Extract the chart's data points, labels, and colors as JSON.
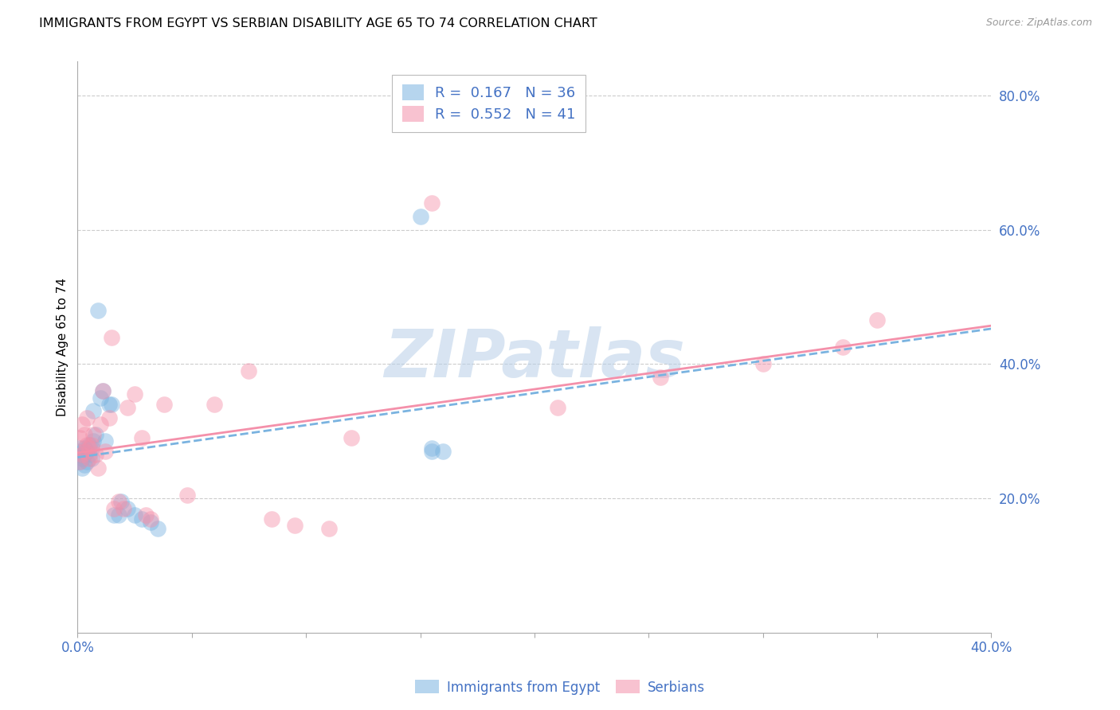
{
  "title": "IMMIGRANTS FROM EGYPT VS SERBIAN DISABILITY AGE 65 TO 74 CORRELATION CHART",
  "source": "Source: ZipAtlas.com",
  "ylabel": "Disability Age 65 to 74",
  "watermark": "ZIPatlas",
  "xlim": [
    0.0,
    0.4
  ],
  "ylim": [
    0.0,
    0.85
  ],
  "yticks_right": [
    0.2,
    0.4,
    0.6,
    0.8
  ],
  "ytick_right_labels": [
    "20.0%",
    "40.0%",
    "60.0%",
    "80.0%"
  ],
  "legend_entries": [
    {
      "label": "R =  0.167   N = 36"
    },
    {
      "label": "R =  0.552   N = 41"
    }
  ],
  "series1_name": "Immigrants from Egypt",
  "series2_name": "Serbians",
  "series1_color": "#7ab3e0",
  "series2_color": "#f490aa",
  "title_fontsize": 11.5,
  "axis_label_fontsize": 11,
  "tick_fontsize": 12,
  "background_color": "#ffffff",
  "grid_color": "#cccccc",
  "series1_x": [
    0.001,
    0.001,
    0.001,
    0.002,
    0.002,
    0.002,
    0.003,
    0.003,
    0.003,
    0.004,
    0.004,
    0.005,
    0.005,
    0.006,
    0.006,
    0.007,
    0.007,
    0.008,
    0.009,
    0.01,
    0.011,
    0.012,
    0.014,
    0.015,
    0.016,
    0.018,
    0.019,
    0.022,
    0.025,
    0.028,
    0.032,
    0.035,
    0.15,
    0.155,
    0.155,
    0.16
  ],
  "series1_y": [
    0.255,
    0.265,
    0.275,
    0.245,
    0.26,
    0.27,
    0.25,
    0.265,
    0.275,
    0.255,
    0.27,
    0.265,
    0.28,
    0.26,
    0.275,
    0.33,
    0.285,
    0.295,
    0.48,
    0.35,
    0.36,
    0.285,
    0.34,
    0.34,
    0.175,
    0.175,
    0.195,
    0.185,
    0.175,
    0.17,
    0.165,
    0.155,
    0.62,
    0.275,
    0.27,
    0.27
  ],
  "series2_x": [
    0.001,
    0.001,
    0.002,
    0.002,
    0.003,
    0.003,
    0.004,
    0.004,
    0.005,
    0.005,
    0.006,
    0.007,
    0.008,
    0.009,
    0.01,
    0.011,
    0.012,
    0.014,
    0.015,
    0.016,
    0.018,
    0.02,
    0.022,
    0.025,
    0.028,
    0.03,
    0.032,
    0.038,
    0.048,
    0.06,
    0.075,
    0.085,
    0.095,
    0.11,
    0.12,
    0.155,
    0.21,
    0.255,
    0.3,
    0.335,
    0.35
  ],
  "series2_y": [
    0.255,
    0.29,
    0.265,
    0.31,
    0.27,
    0.295,
    0.28,
    0.32,
    0.26,
    0.275,
    0.28,
    0.295,
    0.265,
    0.245,
    0.31,
    0.36,
    0.27,
    0.32,
    0.44,
    0.185,
    0.195,
    0.185,
    0.335,
    0.355,
    0.29,
    0.175,
    0.17,
    0.34,
    0.205,
    0.34,
    0.39,
    0.17,
    0.16,
    0.155,
    0.29,
    0.64,
    0.335,
    0.38,
    0.4,
    0.425,
    0.465
  ]
}
